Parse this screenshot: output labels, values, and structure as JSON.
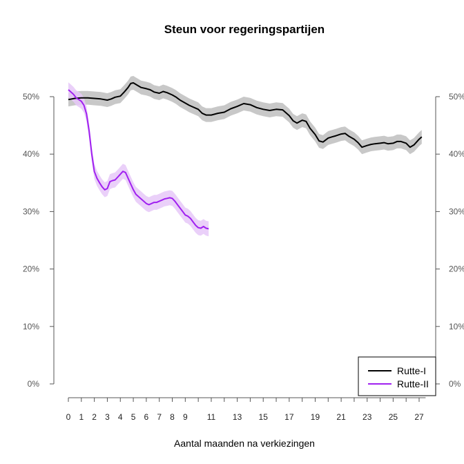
{
  "chart_data": {
    "type": "line",
    "title": "Steun voor regeringspartijen",
    "xlabel": "Aantal maanden na verkiezingen",
    "ylabel": "",
    "xlim": [
      0,
      27.5
    ],
    "ylim": [
      0,
      50
    ],
    "x_ticks": [
      0,
      1,
      2,
      3,
      4,
      5,
      6,
      7,
      8,
      9,
      11,
      13,
      15,
      17,
      19,
      21,
      23,
      25,
      27
    ],
    "x_tick_labels": [
      "0",
      "1",
      "2",
      "3",
      "4",
      "5",
      "6",
      "7",
      "8",
      "9",
      "11",
      "13",
      "15",
      "17",
      "19",
      "21",
      "23",
      "25",
      "27"
    ],
    "y_ticks": [
      0,
      10,
      20,
      30,
      40,
      50
    ],
    "y_tick_labels": [
      "0%",
      "10%",
      "20%",
      "30%",
      "40%",
      "50%"
    ],
    "grid": false,
    "legend": {
      "placement": "bottom-right",
      "entries": [
        "Rutte-I",
        "Rutte-II"
      ]
    },
    "series": [
      {
        "name": "Rutte-I",
        "color": "#000000",
        "band_color": "#c8c8c8",
        "band_halfwidth": 1.2,
        "x": [
          0,
          0.5,
          1,
          1.5,
          2,
          2.5,
          3,
          3.3,
          3.6,
          4,
          4.3,
          4.6,
          4.8,
          5,
          5.3,
          5.6,
          6,
          6.3,
          6.6,
          7,
          7.3,
          7.6,
          8,
          8.3,
          8.6,
          9,
          9.3,
          9.6,
          10,
          10.3,
          10.6,
          11,
          11.5,
          12,
          12.5,
          13,
          13.5,
          14,
          14.5,
          15,
          15.5,
          16,
          16.5,
          17,
          17.3,
          17.6,
          18,
          18.3,
          18.6,
          19,
          19.3,
          19.6,
          20,
          20.3,
          20.6,
          21,
          21.3,
          21.6,
          22,
          22.3,
          22.6,
          23,
          23.3,
          23.6,
          24,
          24.3,
          24.6,
          25,
          25.3,
          25.6,
          26,
          26.3,
          26.6,
          27,
          27.2
        ],
        "y": [
          49.5,
          49.7,
          49.8,
          49.8,
          49.7,
          49.6,
          49.4,
          49.6,
          49.9,
          50.1,
          50.8,
          51.6,
          52.3,
          52.4,
          52.0,
          51.6,
          51.4,
          51.2,
          50.8,
          50.6,
          50.9,
          50.7,
          50.3,
          49.9,
          49.4,
          48.9,
          48.5,
          48.2,
          47.8,
          47.1,
          46.8,
          46.8,
          47.1,
          47.3,
          47.9,
          48.3,
          48.8,
          48.6,
          48.1,
          47.8,
          47.6,
          47.8,
          47.7,
          46.7,
          45.8,
          45.4,
          45.9,
          45.7,
          44.5,
          43.4,
          42.3,
          42.1,
          42.8,
          43.0,
          43.2,
          43.5,
          43.6,
          43.1,
          42.6,
          42.0,
          41.2,
          41.5,
          41.7,
          41.8,
          41.9,
          42.0,
          41.8,
          41.9,
          42.2,
          42.2,
          41.9,
          41.2,
          41.6,
          42.6,
          43.0
        ]
      },
      {
        "name": "Rutte-II",
        "color": "#a020f0",
        "band_color": "#e6c8f8",
        "band_halfwidth": 1.3,
        "x": [
          0,
          0.2,
          0.4,
          0.6,
          0.8,
          1.0,
          1.2,
          1.4,
          1.6,
          1.8,
          2.0,
          2.2,
          2.4,
          2.6,
          2.8,
          3.0,
          3.2,
          3.4,
          3.6,
          3.8,
          4.0,
          4.2,
          4.4,
          4.6,
          4.8,
          5.0,
          5.2,
          5.4,
          5.6,
          5.8,
          6.0,
          6.2,
          6.4,
          6.6,
          6.8,
          7.0,
          7.2,
          7.4,
          7.6,
          7.8,
          8.0,
          8.2,
          8.4,
          8.6,
          8.8,
          9.0,
          9.2,
          9.4,
          9.6,
          9.8,
          10.0,
          10.2,
          10.4,
          10.6,
          10.8
        ],
        "y": [
          51.2,
          50.8,
          50.4,
          49.8,
          49.5,
          49.2,
          48.5,
          47.0,
          44.0,
          40.0,
          37.0,
          35.8,
          35.0,
          34.3,
          33.8,
          34.0,
          35.2,
          35.4,
          35.5,
          36.0,
          36.5,
          37.0,
          36.8,
          35.8,
          34.8,
          33.8,
          33.0,
          32.6,
          32.2,
          31.8,
          31.4,
          31.2,
          31.4,
          31.6,
          31.6,
          31.8,
          32.0,
          32.2,
          32.3,
          32.4,
          32.3,
          31.8,
          31.2,
          30.6,
          30.0,
          29.4,
          29.2,
          28.8,
          28.2,
          27.6,
          27.2,
          27.1,
          27.4,
          27.1,
          27.0
        ]
      }
    ]
  }
}
